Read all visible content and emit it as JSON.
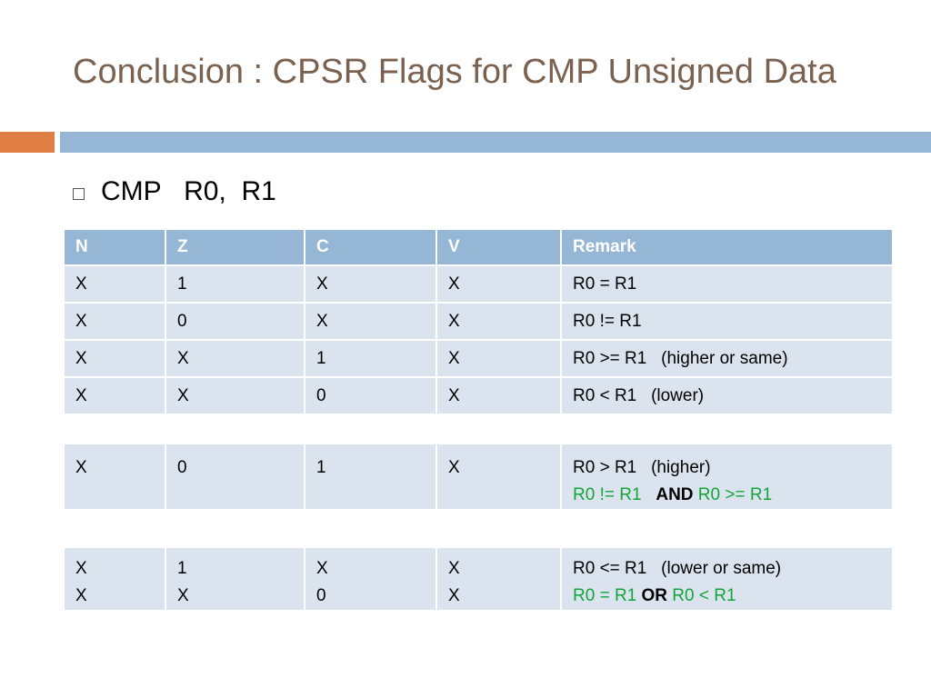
{
  "slide": {
    "title": "Conclusion : CPSR Flags for CMP Unsigned Data",
    "bullet": "CMP   R0,  R1"
  },
  "colors": {
    "title": "#7b6250",
    "accent_orange": "#e07f45",
    "accent_blue": "#95b6d4",
    "row_fill": "#dbe4ee",
    "highlight_green": "#13a43a"
  },
  "table_main": {
    "headers": [
      "N",
      "Z",
      "C",
      "V",
      "Remark"
    ],
    "rows": [
      [
        "X",
        "1",
        "X",
        "X",
        "R0 = R1"
      ],
      [
        "X",
        "0",
        "X",
        "X",
        "R0 != R1"
      ],
      [
        "X",
        "X",
        "1",
        "X",
        "R0 >= R1   (higher or same)"
      ],
      [
        "X",
        "X",
        "0",
        "X",
        "R0 < R1   (lower)"
      ]
    ]
  },
  "table_higher": {
    "row": [
      "X",
      "0",
      "1",
      "X"
    ],
    "remark_line1": "R0 > R1   (higher)",
    "remark_line2_a": "R0 != R1   ",
    "remark_line2_op": "AND",
    "remark_line2_b": " R0 >= R1"
  },
  "table_lower_same": {
    "col_n": [
      "X",
      "X"
    ],
    "col_z": [
      "1",
      "X"
    ],
    "col_c": [
      "X",
      "0"
    ],
    "col_v": [
      "X",
      "X"
    ],
    "remark_line1": "R0 <= R1   (lower or same)",
    "remark_line2_a": "R0 = R1 ",
    "remark_line2_op": "OR",
    "remark_line2_b": " R0 < R1"
  }
}
